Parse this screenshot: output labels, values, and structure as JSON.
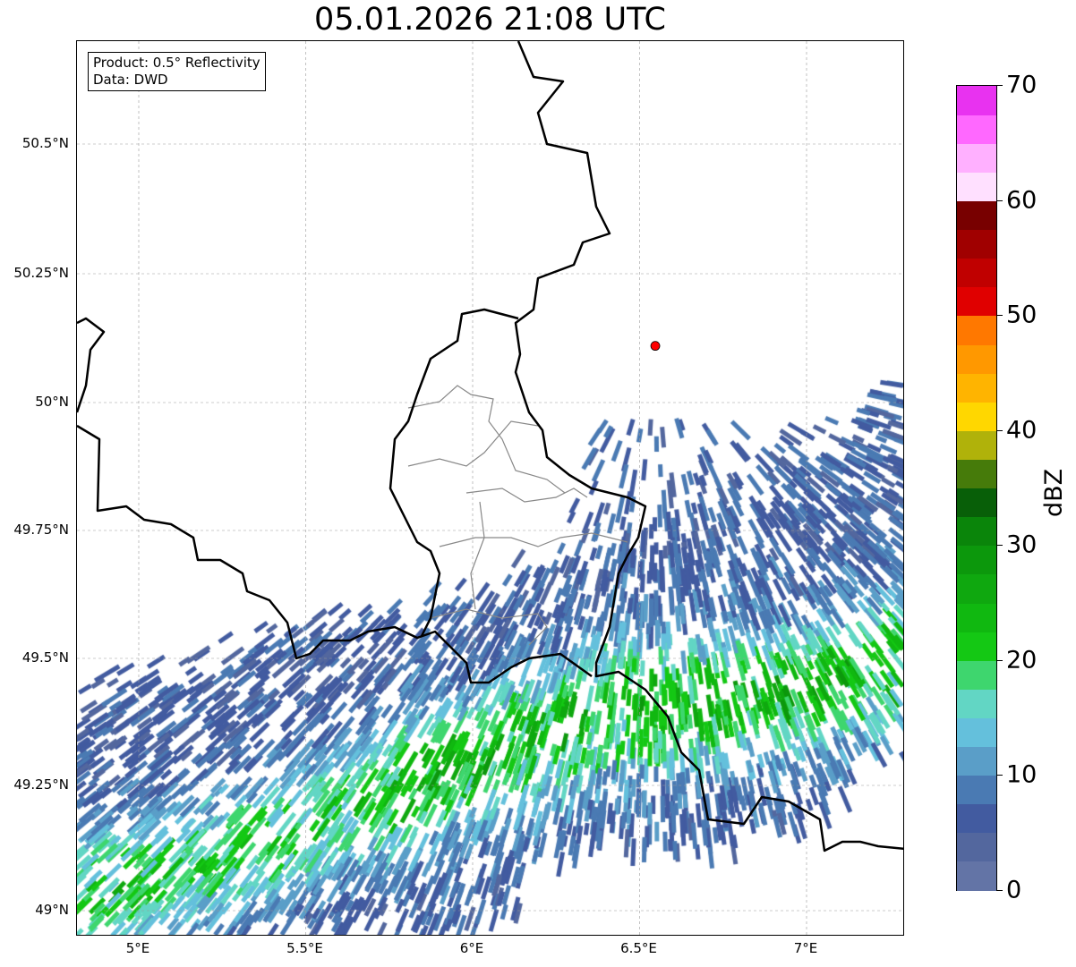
{
  "chart_data": {
    "type": "heatmap",
    "title": "05.01.2026 21:08 UTC",
    "legend_box": [
      "Product: 0.5° Reflectivity",
      "Data: DWD"
    ],
    "x_ticks": [
      "5°E",
      "5.5°E",
      "6°E",
      "6.5°E",
      "7°E"
    ],
    "x_tick_values": [
      5.0,
      5.5,
      6.0,
      6.5,
      7.0
    ],
    "y_ticks": [
      "50.5°N",
      "50.25°N",
      "50°N",
      "49.75°N",
      "49.5°N",
      "49.25°N",
      "49°N"
    ],
    "y_tick_values": [
      50.5,
      50.25,
      50.0,
      49.75,
      49.5,
      49.25,
      49.0
    ],
    "xlim": [
      4.815,
      7.295
    ],
    "ylim": [
      48.95,
      50.7
    ],
    "grid": true,
    "radar_site": {
      "lon": 6.547,
      "lat": 50.11,
      "color": "#ff0000"
    },
    "colorbar": {
      "label": "dBZ",
      "range": [
        0,
        70
      ],
      "step": 2.5,
      "ticks": [
        "0",
        "10",
        "20",
        "30",
        "40",
        "50",
        "60",
        "70"
      ],
      "tick_values": [
        0,
        10,
        20,
        30,
        40,
        50,
        60,
        70
      ],
      "colors": [
        "#6374a6",
        "#53679e",
        "#425ba0",
        "#4a7ab3",
        "#5a9ec8",
        "#64c0dc",
        "#62d6c4",
        "#3ed66e",
        "#14c814",
        "#10b810",
        "#0fa80f",
        "#0c980c",
        "#0a850a",
        "#085f08",
        "#467b0a",
        "#b0b20a",
        "#ffd700",
        "#ffb400",
        "#ff9800",
        "#ff7800",
        "#e00000",
        "#c00000",
        "#a00000",
        "#780000",
        "#ffe0ff",
        "#ffb0ff",
        "#ff68ff",
        "#e832f0"
      ]
    }
  }
}
